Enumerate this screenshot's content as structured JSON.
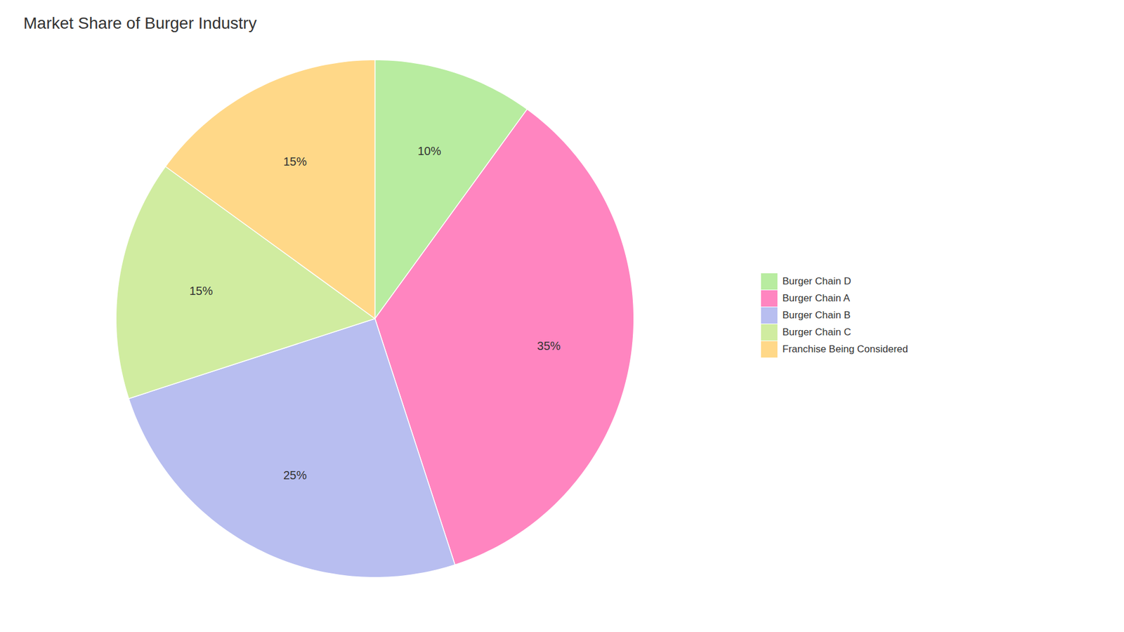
{
  "chart_data": {
    "type": "pie",
    "title": "Market Share of Burger Industry",
    "categories": [
      "Burger Chain D",
      "Burger Chain A",
      "Burger Chain B",
      "Burger Chain C",
      "Franchise Being Considered"
    ],
    "values": [
      10,
      35,
      25,
      15,
      15
    ],
    "value_labels": [
      "10%",
      "35%",
      "25%",
      "15%",
      "15%"
    ],
    "colors": [
      "#B8ECA0",
      "#FF85C0",
      "#B8BEF0",
      "#D0ECA0",
      "#FFD888"
    ],
    "data_labels": true,
    "legend": "right"
  }
}
